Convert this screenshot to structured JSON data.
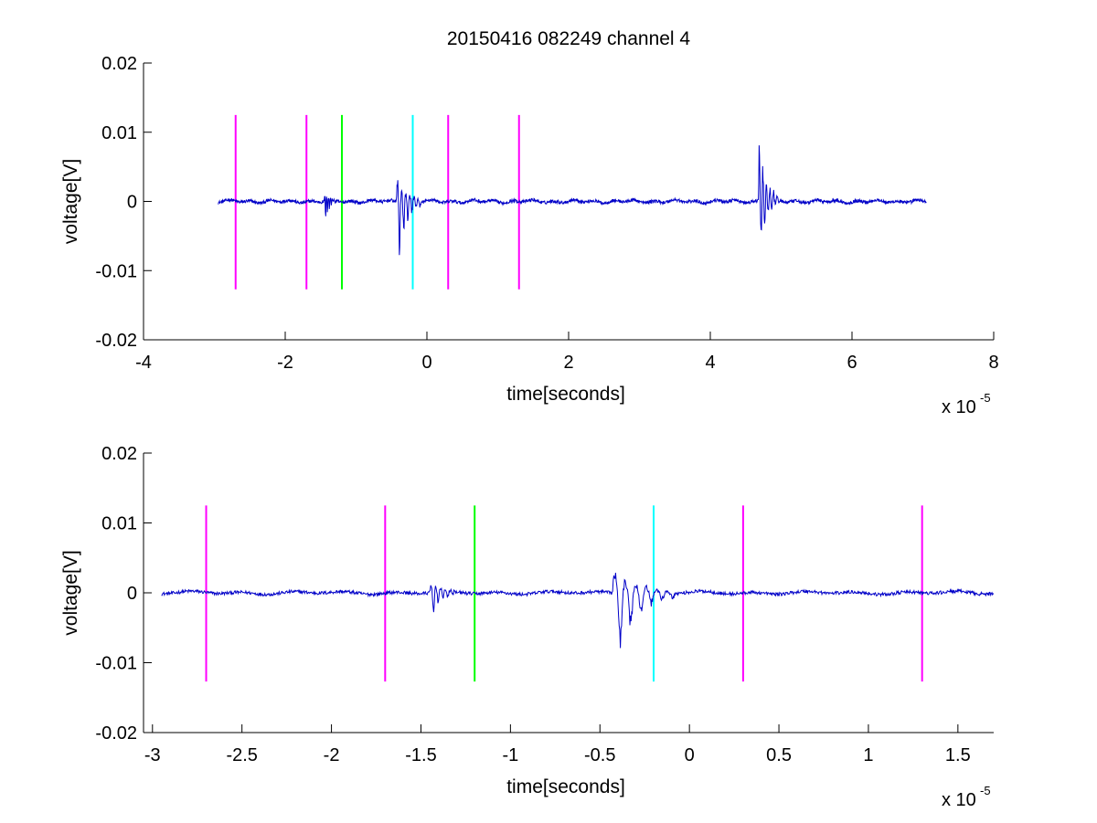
{
  "figure_title": "20150416 082249 channel 4",
  "colors": {
    "trace": "#0000c8",
    "magenta": "#ff00ff",
    "green": "#00ff00",
    "cyan": "#00ffff",
    "axis": "#000000"
  },
  "chart_data": [
    {
      "type": "line",
      "xlabel": "time[seconds]",
      "ylabel": "voltage[V]",
      "x_exponent_label": "x 10",
      "x_exponent_power": "-5",
      "xlim": [
        -4e-05,
        8e-05
      ],
      "ylim": [
        -0.02,
        0.02
      ],
      "x_ticks": [
        -4e-05,
        -2e-05,
        0,
        2e-05,
        4e-05,
        6e-05,
        8e-05
      ],
      "x_tick_labels": [
        "-4",
        "-2",
        "0",
        "2",
        "4",
        "6",
        "8"
      ],
      "y_ticks": [
        -0.02,
        -0.01,
        0,
        0.01,
        0.02
      ],
      "y_tick_labels": [
        "-0.02",
        "-0.01",
        "0",
        "0.01",
        "0.02"
      ],
      "trace_range": [
        -2.95e-05,
        7.05e-05
      ],
      "markers": [
        {
          "x": -2.7e-05,
          "color": "magenta",
          "ymin": -0.0127,
          "ymax": 0.0125
        },
        {
          "x": -1.7e-05,
          "color": "magenta",
          "ymin": -0.0127,
          "ymax": 0.0125
        },
        {
          "x": -1.2e-05,
          "color": "green",
          "ymin": -0.0127,
          "ymax": 0.0125
        },
        {
          "x": -2e-06,
          "color": "cyan",
          "ymin": -0.0127,
          "ymax": 0.0125
        },
        {
          "x": 3e-06,
          "color": "magenta",
          "ymin": -0.0127,
          "ymax": 0.0125
        },
        {
          "x": 1.3e-05,
          "color": "magenta",
          "ymin": -0.0127,
          "ymax": 0.0125
        }
      ],
      "bursts": [
        {
          "t0": -1.45e-05,
          "duration": 1.6e-06,
          "amp_pos": 0.0014,
          "amp_neg": -0.0058
        },
        {
          "t0": -4.3e-06,
          "duration": 3.5e-06,
          "amp_pos": 0.0042,
          "amp_neg": -0.0115
        },
        {
          "t0": 4.68e-05,
          "duration": 3e-06,
          "amp_pos": 0.0113,
          "amp_neg": -0.0073
        }
      ],
      "noise_amplitude": 0.0004
    },
    {
      "type": "line",
      "xlabel": "time[seconds]",
      "ylabel": "voltage[V]",
      "x_exponent_label": "x 10",
      "x_exponent_power": "-5",
      "xlim": [
        -3.05e-05,
        1.7e-05
      ],
      "ylim": [
        -0.02,
        0.02
      ],
      "x_ticks": [
        -3e-05,
        -2.5e-05,
        -2e-05,
        -1.5e-05,
        -1e-05,
        -5e-06,
        0,
        5e-06,
        1e-05,
        1.5e-05
      ],
      "x_tick_labels": [
        "-3",
        "-2.5",
        "-2",
        "-1.5",
        "-1",
        "-0.5",
        "0",
        "0.5",
        "1",
        "1.5"
      ],
      "y_ticks": [
        -0.02,
        -0.01,
        0,
        0.01,
        0.02
      ],
      "y_tick_labels": [
        "-0.02",
        "-0.01",
        "0",
        "0.01",
        "0.02"
      ],
      "trace_range": [
        -2.95e-05,
        1.7e-05
      ],
      "markers": [
        {
          "x": -2.7e-05,
          "color": "magenta",
          "ymin": -0.0127,
          "ymax": 0.0125
        },
        {
          "x": -1.7e-05,
          "color": "magenta",
          "ymin": -0.0127,
          "ymax": 0.0125
        },
        {
          "x": -1.2e-05,
          "color": "green",
          "ymin": -0.0127,
          "ymax": 0.0125
        },
        {
          "x": -2e-06,
          "color": "cyan",
          "ymin": -0.0127,
          "ymax": 0.0125
        },
        {
          "x": 3e-06,
          "color": "magenta",
          "ymin": -0.0127,
          "ymax": 0.0125
        },
        {
          "x": 1.3e-05,
          "color": "magenta",
          "ymin": -0.0127,
          "ymax": 0.0125
        }
      ],
      "bursts": [
        {
          "t0": -1.45e-05,
          "duration": 1.6e-06,
          "amp_pos": 0.0014,
          "amp_neg": -0.0058
        },
        {
          "t0": -4.3e-06,
          "duration": 3.5e-06,
          "amp_pos": 0.0042,
          "amp_neg": -0.0115
        }
      ],
      "noise_amplitude": 0.0004
    }
  ]
}
